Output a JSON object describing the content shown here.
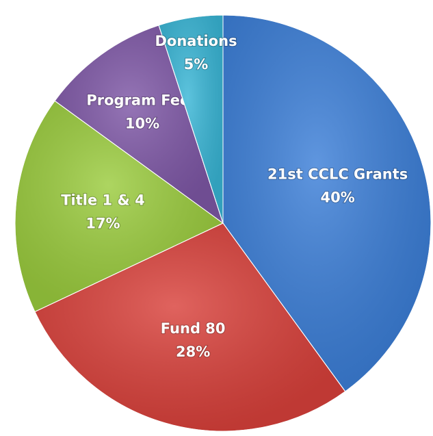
{
  "chart_data": {
    "type": "pie",
    "categories": [
      "21st CCLC Grants",
      "Fund 80",
      "Title 1 & 4",
      "Program Fees",
      "Donations"
    ],
    "values": [
      40,
      28,
      17,
      10,
      5
    ],
    "value_labels": [
      "40%",
      "28%",
      "17%",
      "10%",
      "5%"
    ],
    "colors": [
      "#3c7fd8",
      "#d9413b",
      "#9bcc3e",
      "#7e57a6",
      "#39b6d6"
    ]
  }
}
